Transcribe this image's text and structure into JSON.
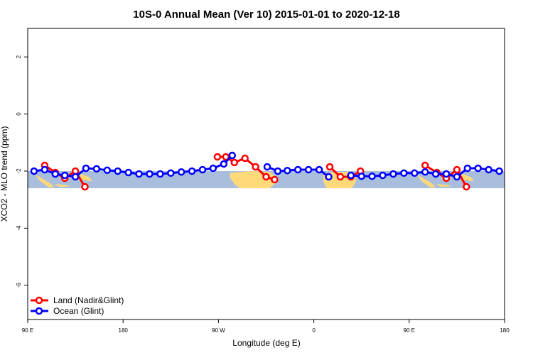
{
  "chart_data": {
    "type": "line",
    "title": "10S-0 Annual Mean (Ver 10)   2015-01-01 to 2020-12-18",
    "xlabel": "Longitude (deg E)",
    "ylabel": "XCO2 - MLO trend (ppm)",
    "xlim": [
      90,
      540
    ],
    "ylim": [
      -7.2,
      3.0
    ],
    "x_ticks": [
      {
        "value": 90,
        "label": "90 E"
      },
      {
        "value": 180,
        "label": "180"
      },
      {
        "value": 270,
        "label": "90 W"
      },
      {
        "value": 360,
        "label": "0"
      },
      {
        "value": 450,
        "label": "90 E"
      },
      {
        "value": 540,
        "label": "180"
      }
    ],
    "y_ticks": [
      {
        "value": 2,
        "label": "2"
      },
      {
        "value": 0,
        "label": "0"
      },
      {
        "value": -2,
        "label": "-2"
      },
      {
        "value": -4,
        "label": "-4"
      },
      {
        "value": -6,
        "label": "-6"
      }
    ],
    "map_band": {
      "lat_min": -10,
      "lat_max": 0,
      "y_top": -2.0,
      "y_bottom": -2.6
    },
    "series": [
      {
        "name": "Land (Nadir&Glint)",
        "color": "#ff0000",
        "segments": [
          [
            [
              106,
              -1.8
            ],
            [
              116,
              -2.05
            ],
            [
              125,
              -2.25
            ],
            [
              135,
              -2.0
            ],
            [
              144,
              -2.55
            ]
          ],
          [
            [
              269,
              -1.5
            ],
            [
              277,
              -1.5
            ],
            [
              285,
              -1.7
            ],
            [
              295,
              -1.55
            ],
            [
              305,
              -1.85
            ],
            [
              315,
              -2.2
            ],
            [
              323,
              -2.3
            ]
          ],
          [
            [
              375,
              -1.85
            ],
            [
              385,
              -2.2
            ],
            [
              395,
              -2.2
            ],
            [
              404,
              -2.0
            ]
          ],
          [
            [
              465,
              -1.8
            ],
            [
              476,
              -2.05
            ],
            [
              485,
              -2.25
            ],
            [
              495,
              -1.95
            ],
            [
              504,
              -2.55
            ]
          ]
        ]
      },
      {
        "name": "Ocean (Glint)",
        "color": "#0000ff",
        "segments": [
          [
            [
              96,
              -2.0
            ],
            [
              106,
              -1.95
            ],
            [
              116,
              -2.1
            ],
            [
              125,
              -2.15
            ],
            [
              135,
              -2.2
            ],
            [
              145,
              -1.9
            ],
            [
              155,
              -1.92
            ],
            [
              165,
              -1.97
            ],
            [
              175,
              -2.0
            ],
            [
              185,
              -2.05
            ],
            [
              195,
              -2.1
            ],
            [
              205,
              -2.1
            ],
            [
              215,
              -2.1
            ],
            [
              225,
              -2.07
            ],
            [
              235,
              -2.03
            ],
            [
              245,
              -2.0
            ],
            [
              255,
              -1.95
            ],
            [
              265,
              -1.9
            ],
            [
              275,
              -1.75
            ],
            [
              283,
              -1.45
            ]
          ],
          [
            [
              316,
              -1.85
            ],
            [
              326,
              -2.0
            ],
            [
              335,
              -1.98
            ],
            [
              345,
              -1.95
            ],
            [
              355,
              -1.95
            ],
            [
              365,
              -1.95
            ],
            [
              374,
              -2.2
            ]
          ],
          [
            [
              395,
              -2.15
            ],
            [
              405,
              -2.18
            ],
            [
              415,
              -2.18
            ],
            [
              425,
              -2.15
            ],
            [
              435,
              -2.1
            ],
            [
              445,
              -2.07
            ],
            [
              455,
              -2.07
            ],
            [
              465,
              -2.03
            ],
            [
              475,
              -2.1
            ],
            [
              485,
              -2.1
            ],
            [
              495,
              -2.2
            ],
            [
              505,
              -1.9
            ],
            [
              515,
              -1.9
            ],
            [
              525,
              -1.95
            ],
            [
              535,
              -2.0
            ]
          ]
        ]
      }
    ],
    "legend": {
      "position": "bottom-left"
    }
  }
}
